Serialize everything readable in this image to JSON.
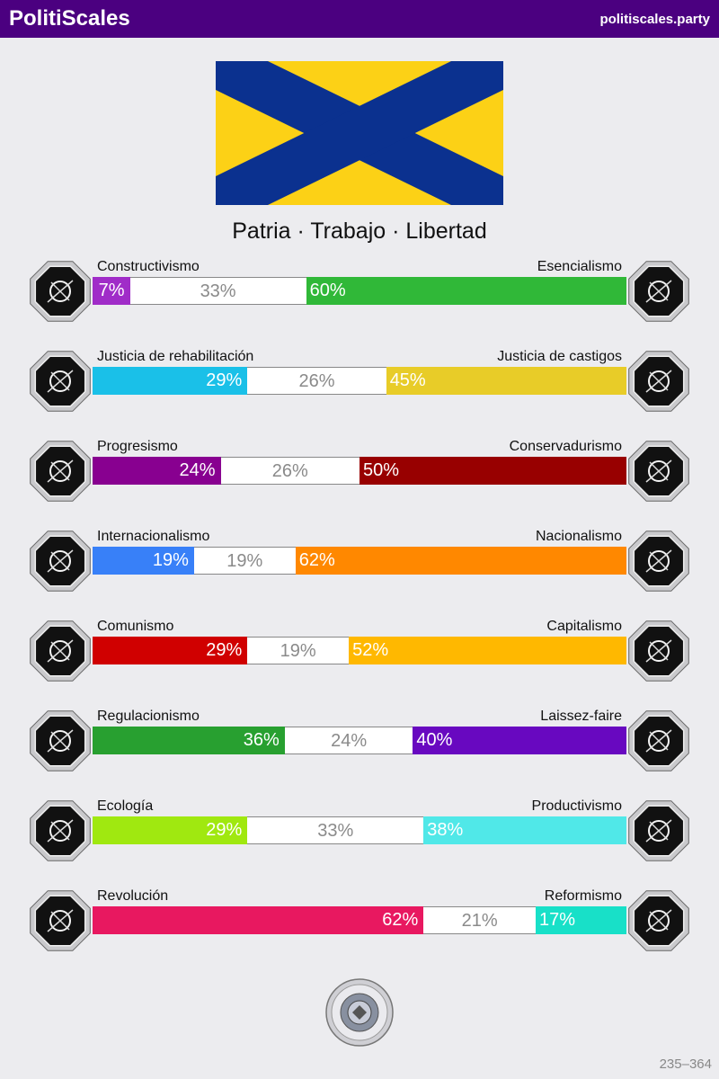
{
  "header": {
    "brand": "PolitiScales",
    "site": "politiscales.party"
  },
  "flag": {
    "field_color": "#fcd116",
    "cross_color": "#0b318f"
  },
  "motto": "Patria · Trabajo · Libertad",
  "axes": [
    {
      "left_label": "Constructivismo",
      "right_label": "Esencialismo",
      "left_pct": 7,
      "center_pct": 33,
      "right_pct": 60,
      "left_text": "7%",
      "center_text": "33%",
      "right_text": "60%",
      "left_color": "#a02cc8",
      "right_color": "#30b838",
      "left_icon": "vortex-icon",
      "right_icon": "flower-icon"
    },
    {
      "left_label": "Justicia de rehabilitación",
      "right_label": "Justicia de castigos",
      "left_pct": 29,
      "center_pct": 26,
      "right_pct": 45,
      "left_text": "29%",
      "center_text": "26%",
      "right_text": "45%",
      "left_color": "#1ac0e8",
      "right_color": "#e8cc28",
      "left_icon": "handshake-icon",
      "right_icon": "prison-bars-icon"
    },
    {
      "left_label": "Progresismo",
      "right_label": "Conservadurismo",
      "left_pct": 24,
      "center_pct": 26,
      "right_pct": 50,
      "left_text": "24%",
      "center_text": "26%",
      "right_text": "50%",
      "left_color": "#880090",
      "right_color": "#980000",
      "left_icon": "comet-icon",
      "right_icon": "quill-icon"
    },
    {
      "left_label": "Internacionalismo",
      "right_label": "Nacionalismo",
      "left_pct": 19,
      "center_pct": 19,
      "right_pct": 62,
      "left_text": "19%",
      "center_text": "19%",
      "right_text": "62%",
      "left_color": "#3880f8",
      "right_color": "#ff8800",
      "left_icon": "globe-icon",
      "right_icon": "flag-icon"
    },
    {
      "left_label": "Comunismo",
      "right_label": "Capitalismo",
      "left_pct": 29,
      "center_pct": 19,
      "right_pct": 52,
      "left_text": "29%",
      "center_text": "19%",
      "right_text": "52%",
      "left_color": "#d00000",
      "right_color": "#ffb800",
      "left_icon": "hammer-sickle-icon",
      "right_icon": "money-bag-icon"
    },
    {
      "left_label": "Regulacionismo",
      "right_label": "Laissez-faire",
      "left_pct": 36,
      "center_pct": 24,
      "right_pct": 40,
      "left_text": "36%",
      "center_text": "24%",
      "right_text": "40%",
      "left_color": "#28a030",
      "right_color": "#6808c0",
      "left_icon": "ruler-icon",
      "right_icon": "butterfly-icon"
    },
    {
      "left_label": "Ecología",
      "right_label": "Productivismo",
      "left_pct": 29,
      "center_pct": 33,
      "right_pct": 38,
      "left_text": "29%",
      "center_text": "33%",
      "right_text": "38%",
      "left_color": "#a0e810",
      "right_color": "#50e8e8",
      "left_icon": "sprout-icon",
      "right_icon": "gear-icon"
    },
    {
      "left_label": "Revolución",
      "right_label": "Reformismo",
      "left_pct": 62,
      "center_pct": 21,
      "right_pct": 17,
      "left_text": "62%",
      "center_text": "21%",
      "right_text": "17%",
      "left_color": "#e81860",
      "right_color": "#18e0c8",
      "left_icon": "fist-icon",
      "right_icon": "bridge-icon"
    }
  ],
  "footer": {
    "id": "235–364"
  }
}
